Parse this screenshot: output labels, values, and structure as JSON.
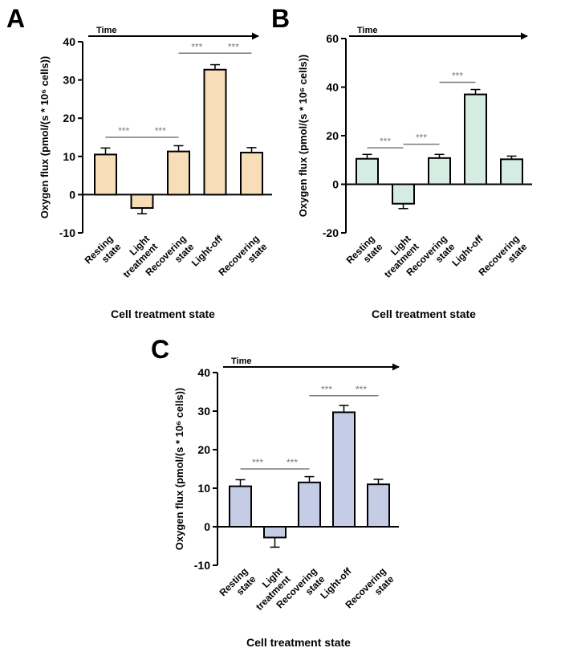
{
  "chart_data": [
    {
      "panel_letter": "A",
      "type": "bar",
      "color": "#F7DDB8",
      "xlabel": "Cell treatment state",
      "ylabel": "Oxygen flux (pmol/(s * 10⁶ cells))",
      "arrow_label": "Time",
      "ylim": [
        -10,
        40
      ],
      "yticks": [
        -10,
        0,
        10,
        20,
        30,
        40
      ],
      "categories": [
        "Resting\nstate",
        "Light\ntreatment",
        "Recovering\nstate",
        "Light-off",
        "Recovering\nstate"
      ],
      "values": [
        10.5,
        -3.5,
        11.3,
        32.7,
        11.0
      ],
      "errors": [
        1.7,
        1.5,
        1.5,
        1.3,
        1.3
      ],
      "significance": [
        {
          "from": 0,
          "to": 1,
          "label": "***",
          "y": 15
        },
        {
          "from": 1,
          "to": 2,
          "label": "***",
          "y": 15
        },
        {
          "from": 2,
          "to": 3,
          "label": "***",
          "y": 37
        },
        {
          "from": 3,
          "to": 4,
          "label": "***",
          "y": 37
        }
      ]
    },
    {
      "panel_letter": "B",
      "type": "bar",
      "color": "#D5ECE3",
      "xlabel": "Cell treatment state",
      "ylabel": "Oxygen flux (pmol/(s * 10⁶ cells))",
      "arrow_label": "Time",
      "ylim": [
        -20,
        60
      ],
      "yticks": [
        -20,
        0,
        20,
        40,
        60
      ],
      "categories": [
        "Resting\nstate",
        "Light\ntreatment",
        "Recovering\nstate",
        "Light-off",
        "Recovering\nstate"
      ],
      "values": [
        10.5,
        -8.0,
        10.8,
        37.0,
        10.3
      ],
      "errors": [
        1.8,
        2.0,
        1.5,
        2.0,
        1.3
      ],
      "significance": [
        {
          "from": 0,
          "to": 1,
          "label": "***",
          "y": 15
        },
        {
          "from": 1,
          "to": 2,
          "label": "***",
          "y": 16.5
        },
        {
          "from": 2,
          "to": 3,
          "label": "***",
          "y": 42
        }
      ]
    },
    {
      "panel_letter": "C",
      "type": "bar",
      "color": "#C5CDE6",
      "xlabel": "Cell treatment state",
      "ylabel": "Oxygen flux (pmol/(s * 10⁶ cells))",
      "arrow_label": "Time",
      "ylim": [
        -10,
        40
      ],
      "yticks": [
        -10,
        0,
        10,
        20,
        30,
        40
      ],
      "categories": [
        "Resting\nstate",
        "Light\ntreatment",
        "Recovering\nstate",
        "Light-off",
        "Recovering\nstate"
      ],
      "values": [
        10.5,
        -2.8,
        11.5,
        29.7,
        11.0
      ],
      "errors": [
        1.7,
        2.5,
        1.5,
        1.8,
        1.3
      ],
      "significance": [
        {
          "from": 0,
          "to": 1,
          "label": "***",
          "y": 15
        },
        {
          "from": 1,
          "to": 2,
          "label": "***",
          "y": 15
        },
        {
          "from": 2,
          "to": 3,
          "label": "***",
          "y": 34
        },
        {
          "from": 3,
          "to": 4,
          "label": "***",
          "y": 34
        }
      ]
    }
  ]
}
